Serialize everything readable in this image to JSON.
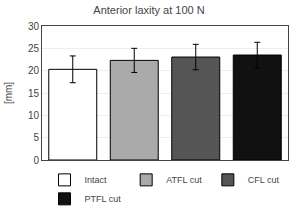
{
  "chart_data": {
    "type": "bar",
    "title": "Anterior laxity at 100 N",
    "ylabel": "[mm]",
    "categories": [
      "Intact",
      "ATFL cut",
      "CFL cut",
      "PTFL cut"
    ],
    "values": [
      20.3,
      22.3,
      23.05,
      23.5
    ],
    "errors": [
      3.0,
      2.7,
      2.85,
      2.85
    ],
    "colors": [
      "#ffffff",
      "#aaaaaa",
      "#555555",
      "#111111"
    ],
    "ylim": [
      0,
      30
    ],
    "yticks": [
      0,
      5,
      10,
      15,
      20,
      25,
      30
    ],
    "grid": true,
    "legend": "bottom",
    "tick_labels": "y"
  }
}
